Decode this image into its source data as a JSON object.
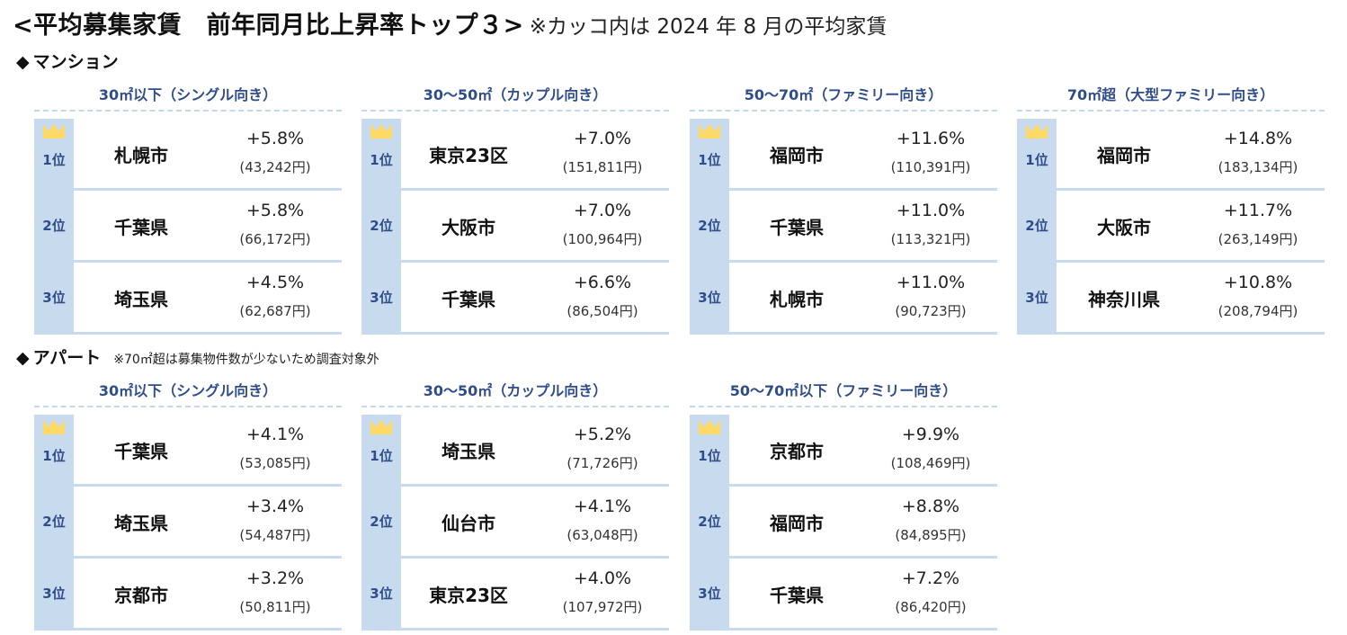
{
  "header": {
    "title": "<平均募集家賃　前年同月比上昇率トップ３>",
    "note": "※カッコ内は 2024 年 8 月の平均家賃"
  },
  "sections": {
    "mansion": {
      "diamond": "◆",
      "label": "マンション",
      "note": "",
      "groups": [
        {
          "title": "30㎡以下（シングル向き）",
          "ranks": [
            {
              "rank": "1位",
              "area": "札幌市",
              "rate": "+5.8%",
              "rent": "(43,242円)"
            },
            {
              "rank": "2位",
              "area": "千葉県",
              "rate": "+5.8%",
              "rent": "(66,172円)"
            },
            {
              "rank": "3位",
              "area": "埼玉県",
              "rate": "+4.5%",
              "rent": "(62,687円)"
            }
          ]
        },
        {
          "title": "30～50㎡（カップル向き）",
          "ranks": [
            {
              "rank": "1位",
              "area": "東京23区",
              "rate": "+7.0%",
              "rent": "(151,811円)"
            },
            {
              "rank": "2位",
              "area": "大阪市",
              "rate": "+7.0%",
              "rent": "(100,964円)"
            },
            {
              "rank": "3位",
              "area": "千葉県",
              "rate": "+6.6%",
              "rent": "(86,504円)"
            }
          ]
        },
        {
          "title": "50～70㎡（ファミリー向き）",
          "ranks": [
            {
              "rank": "1位",
              "area": "福岡市",
              "rate": "+11.6%",
              "rent": "(110,391円)"
            },
            {
              "rank": "2位",
              "area": "千葉県",
              "rate": "+11.0%",
              "rent": "(113,321円)"
            },
            {
              "rank": "3位",
              "area": "札幌市",
              "rate": "+11.0%",
              "rent": "(90,723円)"
            }
          ]
        },
        {
          "title": "70㎡超（大型ファミリー向き）",
          "ranks": [
            {
              "rank": "1位",
              "area": "福岡市",
              "rate": "+14.8%",
              "rent": "(183,134円)"
            },
            {
              "rank": "2位",
              "area": "大阪市",
              "rate": "+11.7%",
              "rent": "(263,149円)"
            },
            {
              "rank": "3位",
              "area": "神奈川県",
              "rate": "+10.8%",
              "rent": "(208,794円)"
            }
          ]
        }
      ]
    },
    "apart": {
      "diamond": "◆",
      "label": "アパート",
      "note": "※70㎡超は募集物件数が少ないため調査対象外",
      "groups": [
        {
          "title": "30㎡以下（シングル向き）",
          "ranks": [
            {
              "rank": "1位",
              "area": "千葉県",
              "rate": "+4.1%",
              "rent": "(53,085円)"
            },
            {
              "rank": "2位",
              "area": "埼玉県",
              "rate": "+3.4%",
              "rent": "(54,487円)"
            },
            {
              "rank": "3位",
              "area": "京都市",
              "rate": "+3.2%",
              "rent": "(50,811円)"
            }
          ]
        },
        {
          "title": "30～50㎡（カップル向き）",
          "ranks": [
            {
              "rank": "1位",
              "area": "埼玉県",
              "rate": "+5.2%",
              "rent": "(71,726円)"
            },
            {
              "rank": "2位",
              "area": "仙台市",
              "rate": "+4.1%",
              "rent": "(63,048円)"
            },
            {
              "rank": "3位",
              "area": "東京23区",
              "rate": "+4.0%",
              "rent": "(107,972円)"
            }
          ]
        },
        {
          "title": "50～70㎡以下（ファミリー向き）",
          "ranks": [
            {
              "rank": "1位",
              "area": "京都市",
              "rate": "+9.9%",
              "rent": "(108,469円)"
            },
            {
              "rank": "2位",
              "area": "福岡市",
              "rate": "+8.8%",
              "rent": "(84,895円)"
            },
            {
              "rank": "3位",
              "area": "千葉県",
              "rate": "+7.2%",
              "rent": "(86,420円)"
            }
          ]
        }
      ]
    }
  },
  "colors": {
    "rank_bg": "#c8dbee",
    "rank_text": "#2f4d8a",
    "group_title": "#2f4d8a",
    "crown": "#ffd966"
  },
  "icons": {
    "first_place": "crown-icon"
  }
}
